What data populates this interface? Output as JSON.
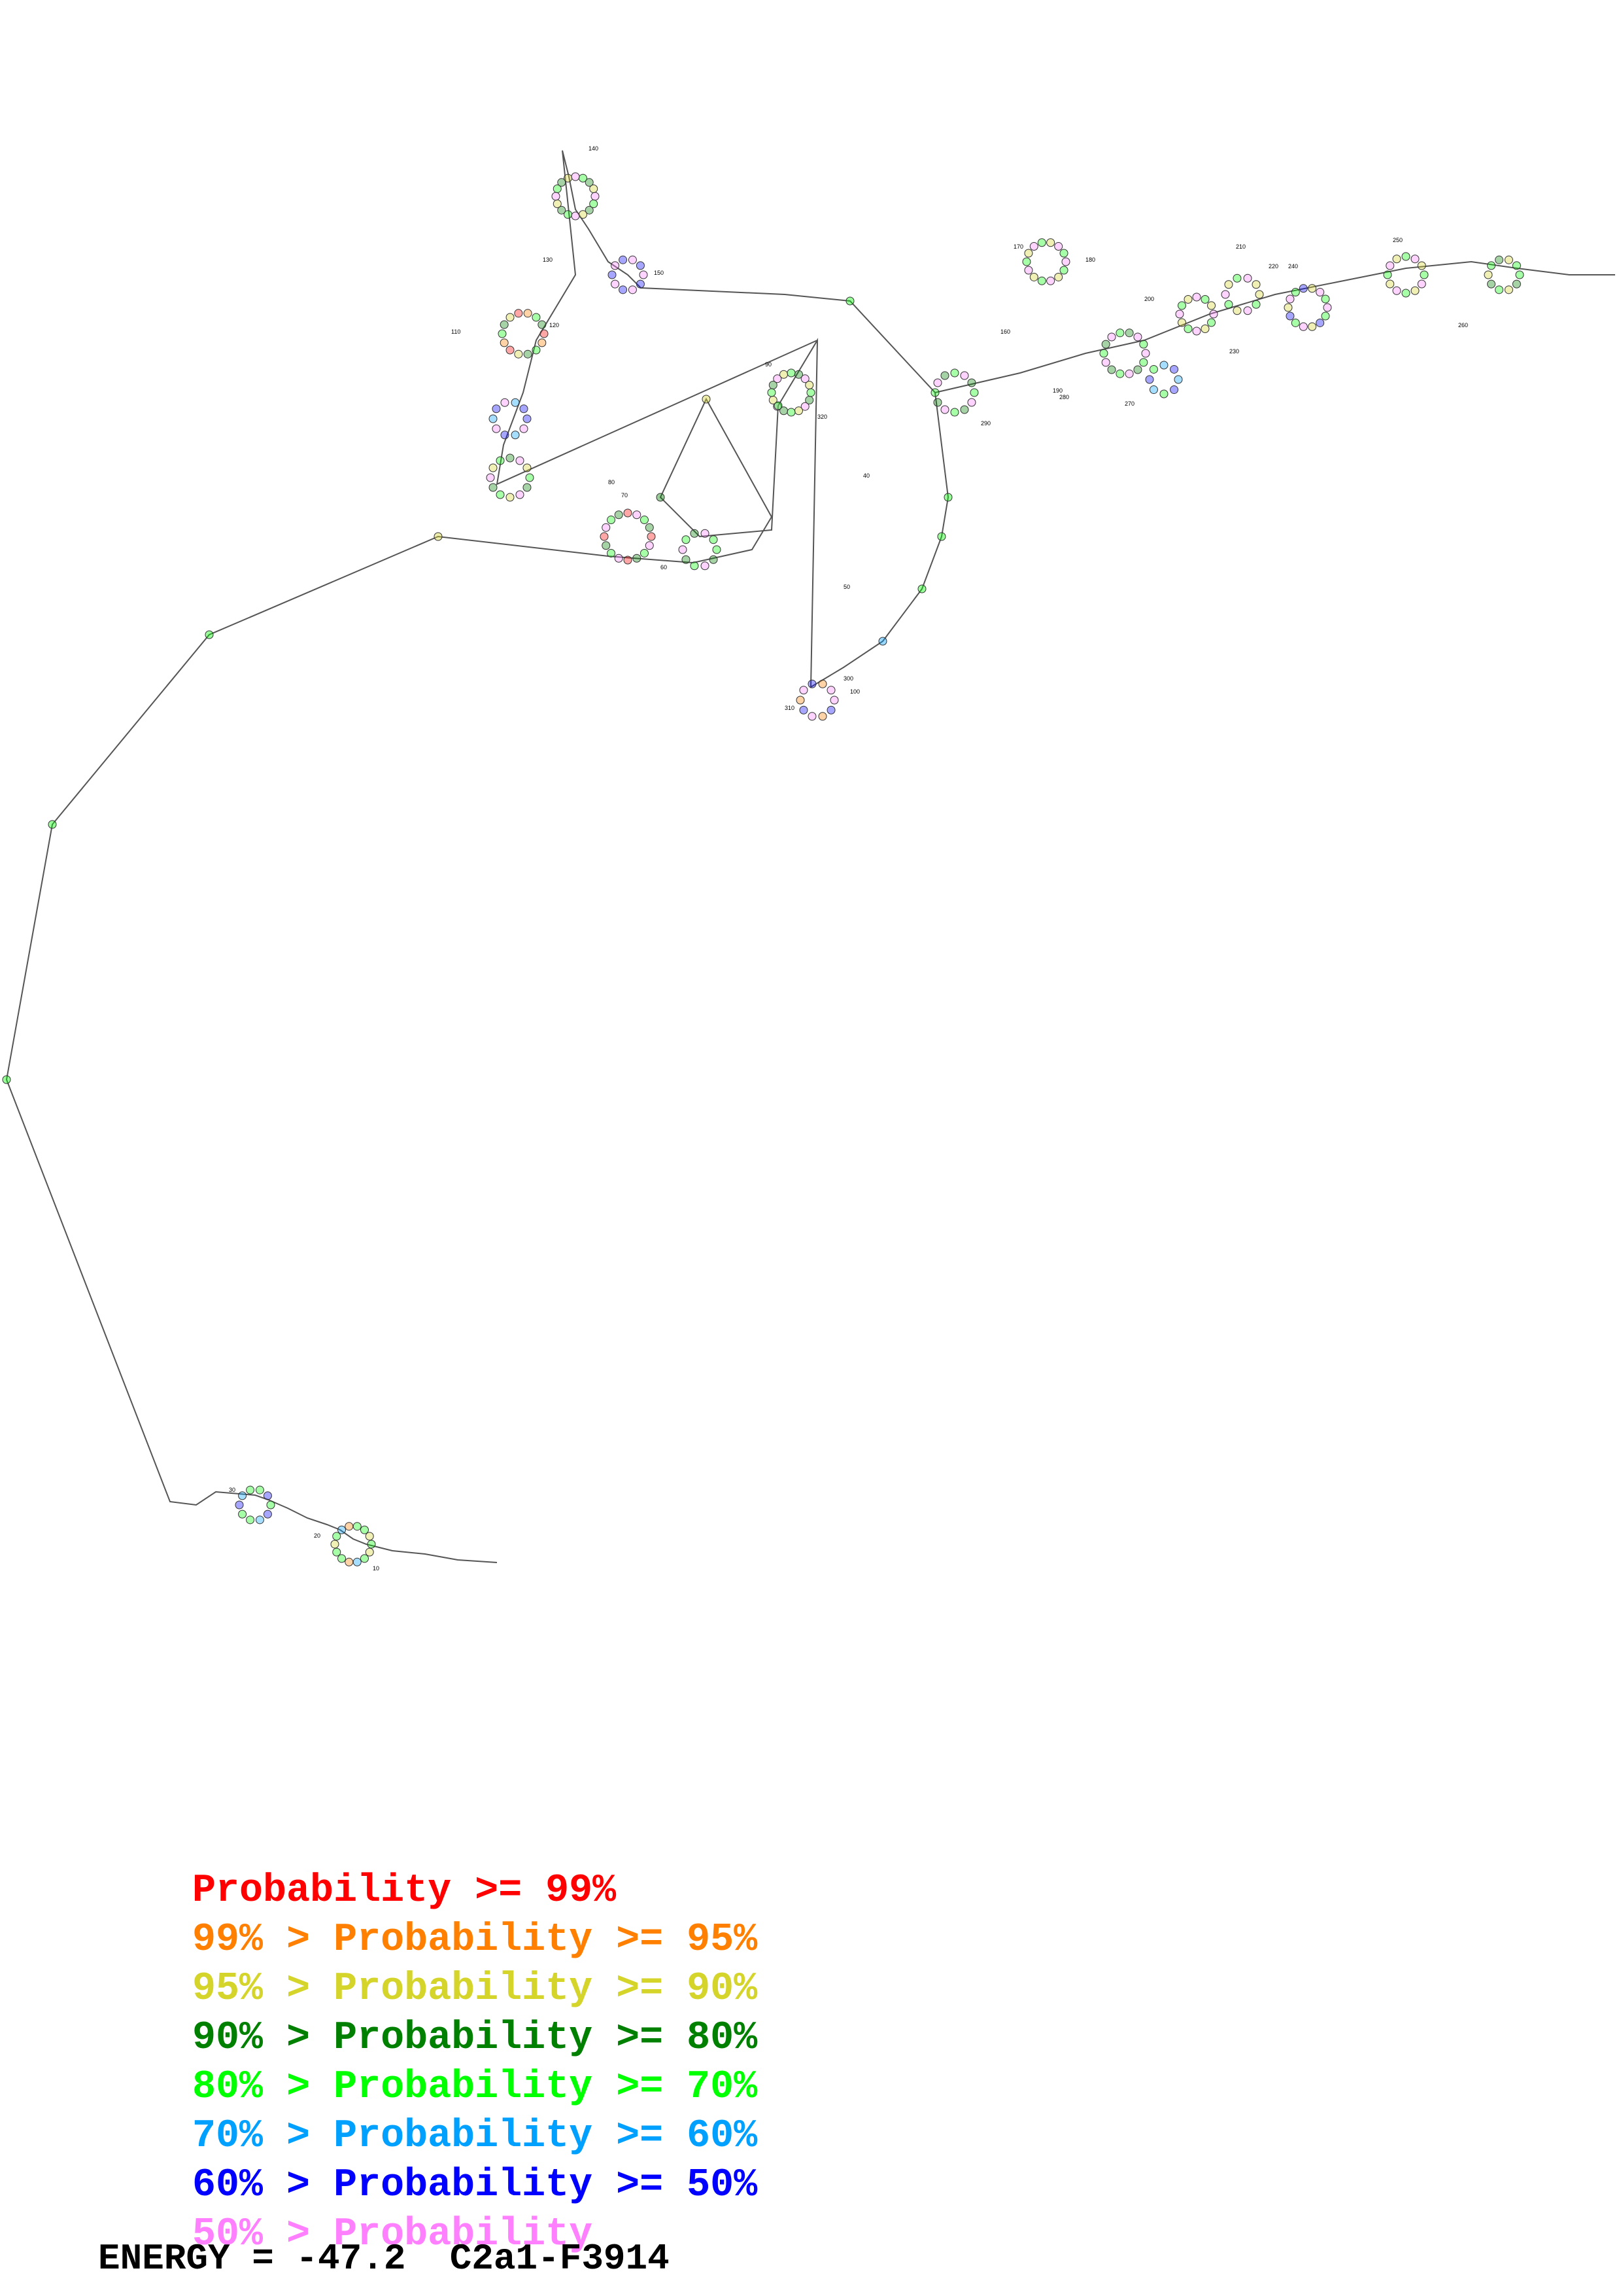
{
  "legend": [
    {
      "prefix": "",
      "label": "Probability",
      "suffix": " >= 99%",
      "color": "#ff0000"
    },
    {
      "prefix": "99% > ",
      "label": "Probability",
      "suffix": " >= 95%",
      "color": "#ff8000"
    },
    {
      "prefix": "95% > ",
      "label": "Probability",
      "suffix": " >= 90%",
      "color": "#d4d42a"
    },
    {
      "prefix": "90% > ",
      "label": "Probability",
      "suffix": " >= 80%",
      "color": "#008000"
    },
    {
      "prefix": "80% > ",
      "label": "Probability",
      "suffix": " >= 70%",
      "color": "#00ff00"
    },
    {
      "prefix": "70% > ",
      "label": "Probability",
      "suffix": " >= 60%",
      "color": "#00a0ff"
    },
    {
      "prefix": "60% > ",
      "label": "Probability",
      "suffix": " >= 50%",
      "color": "#0000ff"
    },
    {
      "prefix": "50% > ",
      "label": "Probability",
      "suffix": "",
      "color": "#ff80ff"
    }
  ],
  "energy_text": "ENERGY = -47.2  C2a1-F3914",
  "position_labels": [
    "10",
    "20",
    "30",
    "40",
    "50",
    "60",
    "70",
    "80",
    "90",
    "100",
    "110",
    "120",
    "130",
    "140",
    "150",
    "160",
    "170",
    "180",
    "190",
    "200",
    "210",
    "220",
    "230",
    "240",
    "250",
    "260",
    "270",
    "280",
    "290",
    "300",
    "310",
    "320"
  ],
  "node_colors": [
    "#ff0000",
    "#ff8000",
    "#d4d42a",
    "#008000",
    "#00ff00",
    "#00a0ff",
    "#0000ff",
    "#ff80ff"
  ]
}
